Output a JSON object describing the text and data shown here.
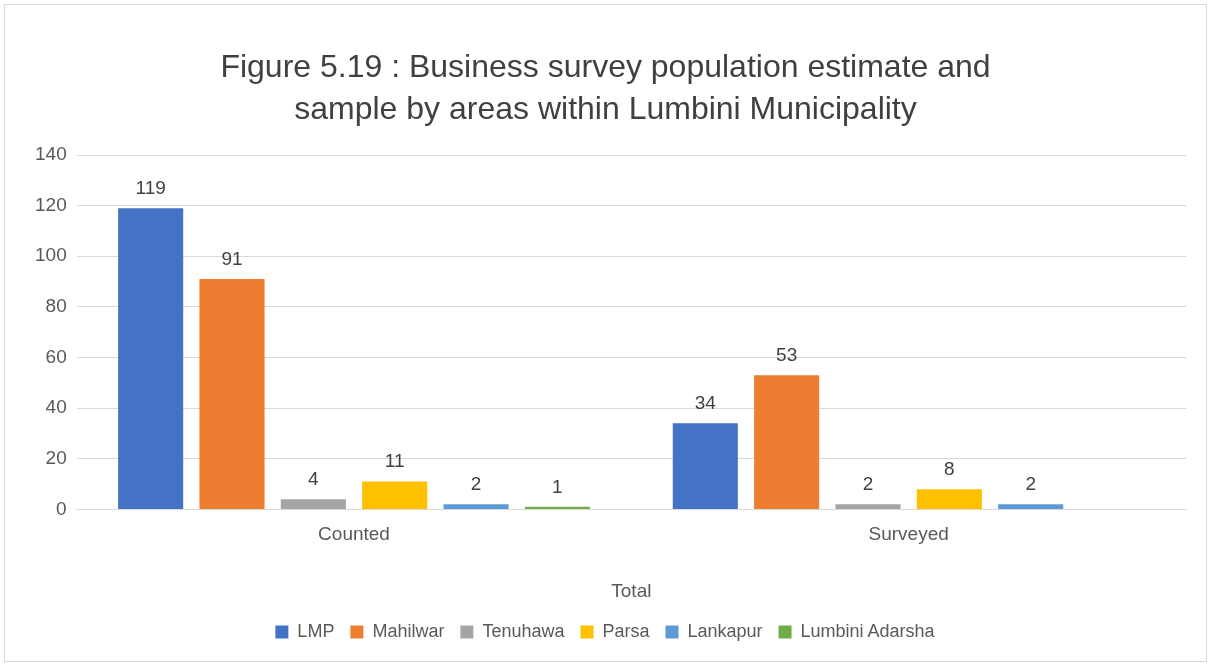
{
  "chart_data": {
    "type": "bar",
    "title": "Figure 5.19 : Business survey population estimate and sample by areas within Lumbini Municipality",
    "xlabel": "Total",
    "categories": [
      "Counted",
      "Surveyed"
    ],
    "series": [
      {
        "name": "LMP",
        "color": "#4472c4",
        "values": [
          119,
          34
        ]
      },
      {
        "name": "Mahilwar",
        "color": "#ed7d31",
        "values": [
          91,
          53
        ]
      },
      {
        "name": "Tenuhawa",
        "color": "#a5a5a5",
        "values": [
          4,
          2
        ]
      },
      {
        "name": "Parsa",
        "color": "#ffc000",
        "values": [
          11,
          8
        ]
      },
      {
        "name": "Lankapur",
        "color": "#5b9bd5",
        "values": [
          2,
          2
        ]
      },
      {
        "name": "Lumbini Adarsha",
        "color": "#70ad47",
        "values": [
          1,
          null
        ]
      }
    ],
    "ylim": [
      0,
      140
    ],
    "yticks": [
      0,
      20,
      40,
      60,
      80,
      100,
      120,
      140
    ],
    "grid": "y",
    "legend": "bottom",
    "data_labels": true
  }
}
